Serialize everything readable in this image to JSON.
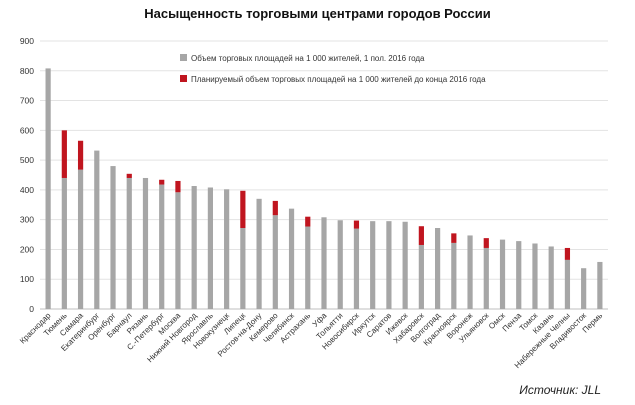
{
  "chart_data": {
    "type": "bar",
    "title": "Насыщенность торговыми центрами городов России",
    "ylim": [
      0,
      900
    ],
    "yticks": [
      0,
      100,
      200,
      300,
      400,
      500,
      600,
      700,
      800,
      900
    ],
    "legend_position": "top-right",
    "colors": {
      "current": "#a6a6a6",
      "planned": "#c0151f"
    },
    "categories": [
      "Краснодар",
      "Тюмень",
      "Самара",
      "Екатеринбург",
      "Оренбург",
      "Барнаул",
      "Рязань",
      "С.-Петербург",
      "Москва",
      "Нижний Новгород",
      "Ярославль",
      "Новокузнецк",
      "Липецк",
      "Ростов-на-Дону",
      "Кемерово",
      "Челябинск",
      "Астрахань",
      "Уфа",
      "Тольятти",
      "Новосибирск",
      "Иркутск",
      "Саратов",
      "Ижевск",
      "Хабаровск",
      "Волгоград",
      "Красноярск",
      "Воронеж",
      "Ульяновск",
      "Омск",
      "Пенза",
      "Томск",
      "Казань",
      "Набережные Челны",
      "Владивосток",
      "Пермь"
    ],
    "series": [
      {
        "name": "Объем торговых площадей на 1 000 жителей, 1 пол. 2016 года",
        "values": [
          808,
          440,
          468,
          532,
          480,
          440,
          440,
          418,
          392,
          413,
          408,
          402,
          272,
          370,
          315,
          337,
          277,
          308,
          298,
          270,
          295,
          295,
          293,
          215,
          272,
          222,
          247,
          205,
          233,
          228,
          220,
          210,
          165,
          137,
          158
        ]
      },
      {
        "name": "Планируемый объем торговых площадей на 1 000 жителей до конца 2016 года",
        "values": [
          0,
          160,
          97,
          0,
          0,
          14,
          0,
          16,
          38,
          0,
          0,
          0,
          125,
          0,
          48,
          0,
          33,
          0,
          0,
          27,
          0,
          0,
          0,
          63,
          0,
          32,
          0,
          33,
          0,
          0,
          0,
          0,
          40,
          0,
          0
        ]
      }
    ]
  },
  "source_label": "Источник: JLL"
}
